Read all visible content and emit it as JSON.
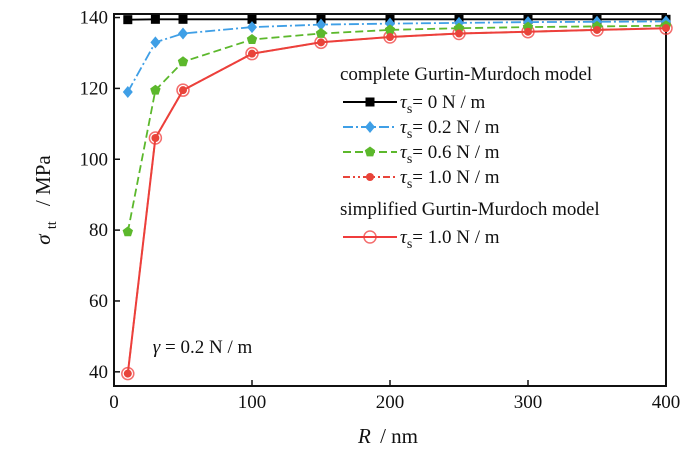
{
  "chart_data": {
    "type": "line",
    "xlabel": {
      "symbol": "R",
      "unit": "/ nm"
    },
    "ylabel": {
      "symbol": "σ",
      "subscript": "tt",
      "unit": "/ MPa"
    },
    "xlim": [
      0,
      400
    ],
    "ylim": [
      36,
      141
    ],
    "xticks": [
      0,
      100,
      200,
      300,
      400
    ],
    "yticks": [
      40,
      60,
      80,
      100,
      120,
      140
    ],
    "grid": false,
    "legend_placement": "right",
    "annotation": {
      "symbol": "γ",
      "text": " = 0.2 N / m",
      "x": 10,
      "y": 47
    },
    "legend_groups": [
      {
        "title": "complete Gurtin-Murdoch model",
        "series_indices": [
          0,
          1,
          2,
          3
        ]
      },
      {
        "title": "simplified Gurtin-Murdoch model",
        "series_indices": [
          4
        ]
      }
    ],
    "series": [
      {
        "name": "= 0 N / m",
        "tau_symbol": "τ",
        "tau_sub": "s",
        "color": "#000000",
        "dash": "",
        "marker": "square",
        "x": [
          10,
          30,
          50,
          100,
          150,
          200,
          250,
          300,
          350,
          400
        ],
        "values": [
          139.4,
          139.5,
          139.5,
          139.5,
          139.5,
          139.5,
          139.5,
          139.5,
          139.5,
          139.5
        ]
      },
      {
        "name": "= 0.2 N / m",
        "tau_symbol": "τ",
        "tau_sub": "s",
        "color": "#3f9fe6",
        "dash": "10,3,2,3",
        "marker": "diamond",
        "x": [
          10,
          30,
          50,
          100,
          150,
          200,
          250,
          300,
          350,
          400
        ],
        "values": [
          119.0,
          133.0,
          135.5,
          137.3,
          138.0,
          138.3,
          138.5,
          138.7,
          138.8,
          138.9
        ]
      },
      {
        "name": "= 0.6 N / m",
        "tau_symbol": "τ",
        "tau_sub": "s",
        "color": "#5cb82c",
        "dash": "8,4",
        "marker": "pentagon",
        "x": [
          10,
          30,
          50,
          100,
          150,
          200,
          250,
          300,
          350,
          400
        ],
        "values": [
          79.5,
          119.5,
          127.5,
          133.8,
          135.5,
          136.5,
          137.0,
          137.3,
          137.5,
          137.7
        ]
      },
      {
        "name": "= 1.0 N / m",
        "tau_symbol": "τ",
        "tau_sub": "s",
        "color": "#e8443a",
        "dash": "7,3,2,3,2,3",
        "marker": "dot",
        "x": [
          10,
          30,
          50,
          100,
          150,
          200,
          250,
          300,
          350,
          400
        ],
        "values": [
          39.5,
          106.0,
          119.5,
          129.8,
          133.0,
          134.5,
          135.5,
          136.0,
          136.5,
          137.0
        ]
      },
      {
        "name": "= 1.0 N / m",
        "tau_symbol": "τ",
        "tau_sub": "s",
        "color": "#f03c3c",
        "dash": "",
        "marker": "open-circle",
        "x": [
          10,
          30,
          50,
          100,
          150,
          200,
          250,
          300,
          350,
          400
        ],
        "values": [
          39.5,
          106.0,
          119.5,
          129.8,
          133.0,
          134.5,
          135.5,
          136.0,
          136.5,
          137.0
        ]
      }
    ]
  }
}
